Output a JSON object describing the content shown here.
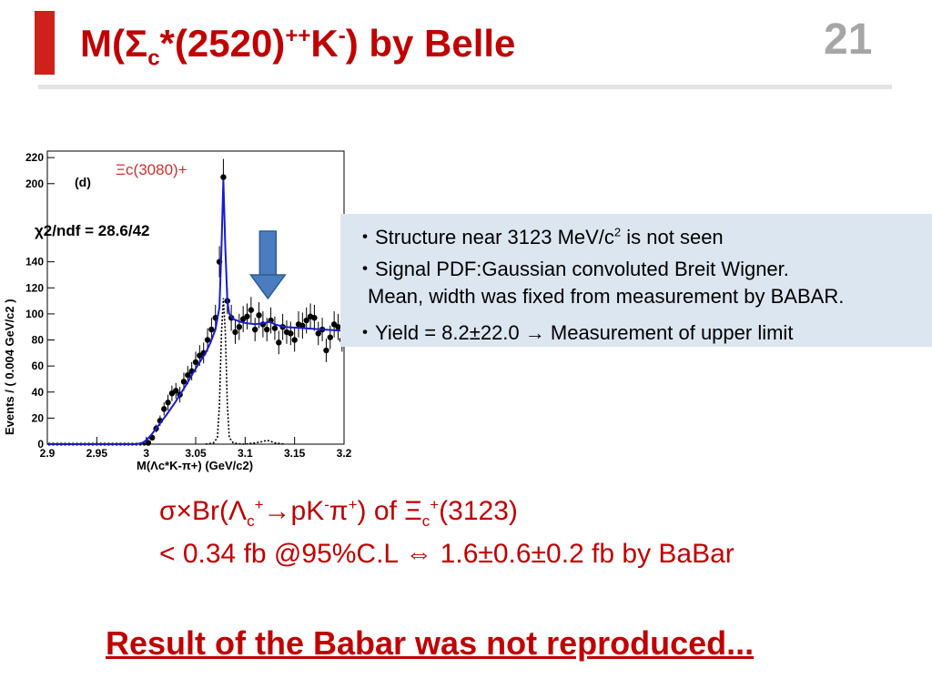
{
  "slide": {
    "title_main": "M(Σ",
    "title_sub_c": "c",
    "title_star": "*(2520)",
    "title_sup_pp": "++",
    "title_K": "K",
    "title_sup_minus": "-",
    "title_end": ") by Belle",
    "page_number": "21"
  },
  "info_box": {
    "line1_prefix": "・Structure near 3123 MeV/c",
    "line1_sup": "2",
    "line1_suffix": " is not seen",
    "line2": "・Signal PDF:Gaussian convoluted Breit Wigner.",
    "line3": "Mean, width was fixed from measurement by BABAR.",
    "line4": "・Yield = 8.2±22.0 → Measurement of upper limit"
  },
  "result": {
    "line1_a": "σ×Br(Λ",
    "line1_sub_c": "c",
    "line1_sup_plus": "+",
    "line1_b": "→pK",
    "line1_sup_minus": "-",
    "line1_c": "π",
    "line1_sup_plus2": "+",
    "line1_d": ") of Ξ",
    "line1_sub_c2": "c",
    "line1_sup_plus3": "+",
    "line1_e": "(3123)",
    "line2": "< 0.34 fb @95%C.L ⇔ 1.6±0.6±0.2 fb by BaBar"
  },
  "conclusion": "Result of the Babar was not reproduced...",
  "colors": {
    "accent_red": "#c00000",
    "title_bar": "#d0201a",
    "info_bg": "#dce6f0",
    "fit_blue": "#1a1ad0",
    "arrow_fill": "#4a7cbf",
    "peak_label_red": "#d03030"
  },
  "chart_data": {
    "type": "scatter",
    "panel_label": "(d)",
    "peak_label": "Ξc(3080)+",
    "chi2_label": "χ2/ndf = 28.6/42",
    "xlabel": "M(Λc*K-π+) (GeV/c2)",
    "ylabel": "Events / ( 0.004 GeV/c2 )",
    "xlim": [
      2.9,
      3.2
    ],
    "ylim": [
      0,
      225
    ],
    "x_ticks": [
      "2.9",
      "2.95",
      "3",
      "3.05",
      "3.1",
      "3.15",
      "3.2"
    ],
    "y_ticks": [
      "0",
      "20",
      "40",
      "60",
      "80",
      "100",
      "120",
      "140",
      "200",
      "220"
    ],
    "points": {
      "x": [
        2.902,
        2.906,
        2.91,
        2.914,
        2.918,
        2.922,
        2.926,
        2.93,
        2.934,
        2.938,
        2.942,
        2.946,
        2.95,
        2.954,
        2.958,
        2.962,
        2.966,
        2.97,
        2.974,
        2.978,
        2.982,
        2.986,
        2.99,
        2.994,
        2.998,
        3.002,
        3.006,
        3.01,
        3.014,
        3.018,
        3.022,
        3.026,
        3.03,
        3.034,
        3.038,
        3.042,
        3.046,
        3.05,
        3.054,
        3.058,
        3.062,
        3.066,
        3.07,
        3.074,
        3.078,
        3.082,
        3.086,
        3.09,
        3.094,
        3.098,
        3.102,
        3.106,
        3.11,
        3.114,
        3.118,
        3.122,
        3.126,
        3.13,
        3.134,
        3.138,
        3.142,
        3.146,
        3.15,
        3.154,
        3.158,
        3.162,
        3.166,
        3.17,
        3.174,
        3.178,
        3.182,
        3.186,
        3.19,
        3.194,
        3.198
      ],
      "y": [
        0,
        0,
        0,
        0,
        0,
        0,
        0,
        0,
        0,
        0,
        0,
        0,
        0,
        0,
        0,
        0,
        0,
        0,
        0,
        0,
        0,
        0,
        0,
        0,
        0,
        1,
        5,
        12,
        18,
        27,
        32,
        39,
        41,
        38,
        48,
        53,
        56,
        63,
        68,
        70,
        80,
        88,
        97,
        140,
        205,
        110,
        97,
        86,
        90,
        96,
        98,
        103,
        88,
        99,
        92,
        88,
        95,
        89,
        78,
        90,
        86,
        85,
        80,
        92,
        91,
        95,
        98,
        97,
        85,
        88,
        72,
        82,
        92,
        90,
        80
      ],
      "yerr": [
        0,
        0,
        0,
        0,
        0,
        0,
        0,
        0,
        0,
        0,
        0,
        0,
        0,
        0,
        0,
        0,
        0,
        0,
        0,
        0,
        0,
        0,
        0,
        0,
        0,
        1,
        2,
        3,
        4,
        5,
        6,
        6,
        6,
        6,
        7,
        7,
        7,
        8,
        8,
        8,
        9,
        9,
        10,
        12,
        14,
        10,
        10,
        9,
        10,
        10,
        10,
        10,
        9,
        10,
        10,
        9,
        10,
        9,
        9,
        10,
        9,
        9,
        9,
        10,
        10,
        10,
        10,
        10,
        9,
        9,
        9,
        9,
        10,
        10,
        9
      ]
    },
    "fit_total": {
      "x": [
        2.9,
        2.99,
        2.996,
        3.0,
        3.005,
        3.01,
        3.02,
        3.03,
        3.04,
        3.05,
        3.06,
        3.065,
        3.07,
        3.074,
        3.076,
        3.078,
        3.08,
        3.082,
        3.084,
        3.088,
        3.095,
        3.1,
        3.11,
        3.12,
        3.125,
        3.13,
        3.14,
        3.16,
        3.18,
        3.2
      ],
      "y": [
        0,
        0,
        1,
        3,
        7,
        12,
        22,
        33,
        45,
        58,
        70,
        78,
        88,
        105,
        150,
        203,
        150,
        110,
        100,
        96,
        94,
        93,
        92,
        93,
        94,
        92,
        90,
        89,
        88,
        87
      ]
    },
    "fit_signal_dotted": {
      "x": [
        3.06,
        3.068,
        3.072,
        3.074,
        3.076,
        3.078,
        3.08,
        3.082,
        3.084,
        3.088,
        3.096,
        3.1,
        3.11,
        3.118,
        3.122,
        3.126,
        3.13,
        3.14
      ],
      "y": [
        0,
        1,
        5,
        30,
        85,
        112,
        85,
        30,
        5,
        1,
        0,
        0,
        1,
        2,
        3,
        2,
        1,
        0
      ]
    },
    "arrow_at_x": 3.123
  }
}
